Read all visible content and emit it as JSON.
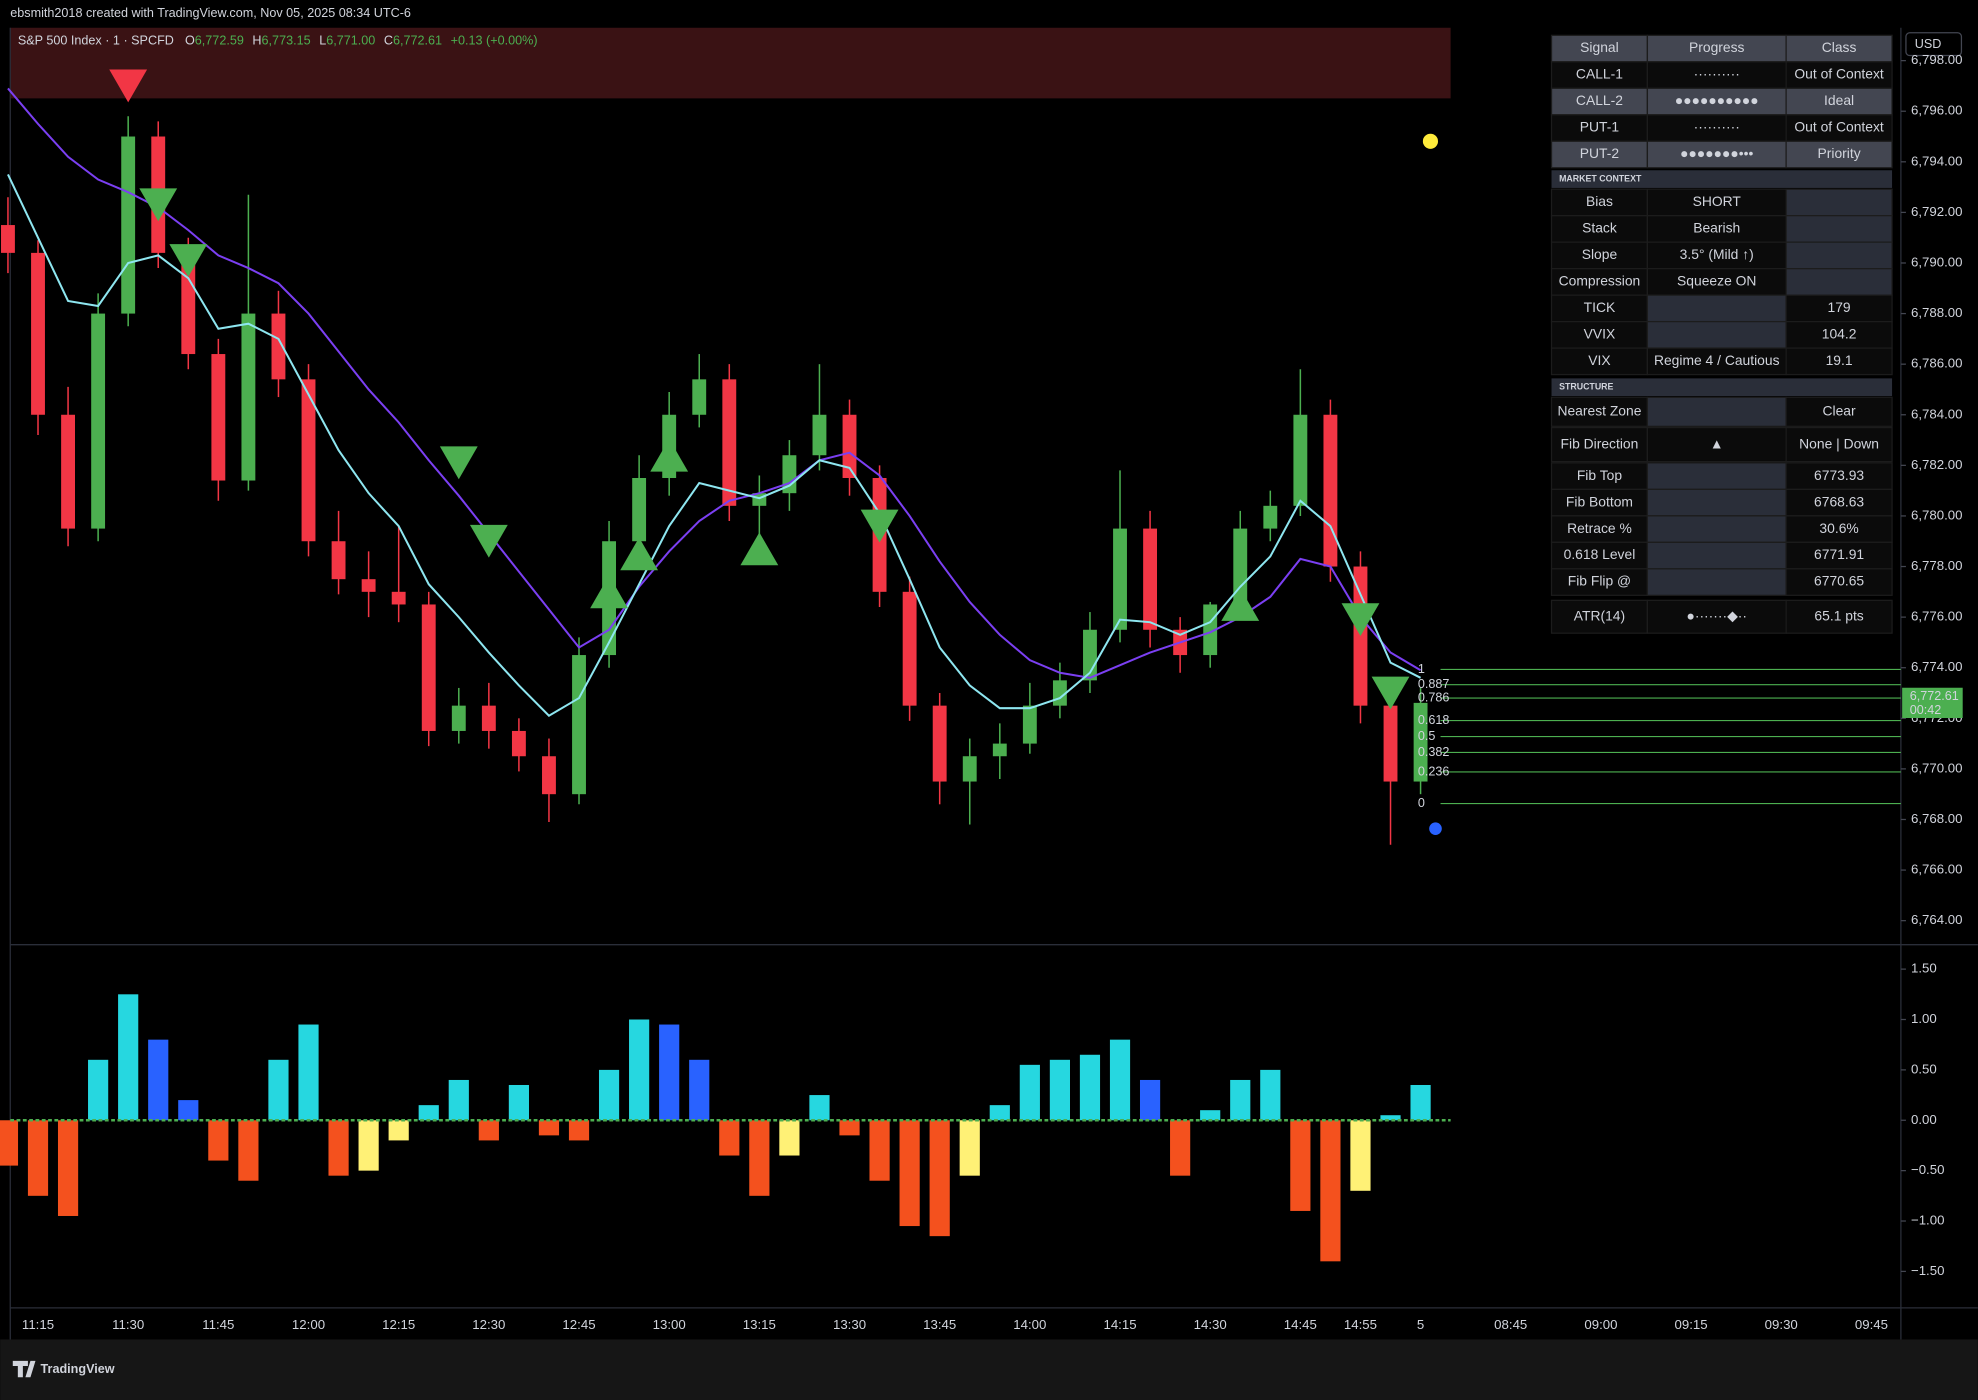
{
  "header": {
    "title": "ebsmith2018 created with TradingView.com, Nov 05, 2025 08:34 UTC-6",
    "brand": "TradingView",
    "currency": "USD"
  },
  "legend": {
    "symbol": "S&P 500 Index · 1 · SPCFD",
    "ohlc": [
      {
        "label": "O",
        "value": "6,772.59"
      },
      {
        "label": "H",
        "value": "6,773.15"
      },
      {
        "label": "L",
        "value": "6,771.00"
      },
      {
        "label": "C",
        "value": "6,772.61"
      }
    ],
    "change": "+0.13 (+0.00%)"
  },
  "chart_data": [
    {
      "type": "candlestick",
      "open": [
        6791.5,
        6790.4,
        6784.0,
        6779.5,
        6788.0,
        6795.0,
        6790.4,
        6786.4,
        6781.4,
        6788.0,
        6785.4,
        6779.0,
        6777.5,
        6777.0,
        6776.5,
        6771.5,
        6772.5,
        6771.5,
        6770.5,
        6769.0,
        6774.5,
        6779.0,
        6781.5,
        6784.0,
        6785.4,
        6780.4,
        6780.9,
        6782.4,
        6784.0,
        6781.5,
        6777.0,
        6772.5,
        6769.5,
        6770.5,
        6771.0,
        6772.5,
        6773.5,
        6775.5,
        6779.5,
        6775.5,
        6774.5,
        6776.5,
        6779.5,
        6780.4,
        6784.0,
        6778.0,
        6772.5,
        6769.5
      ],
      "high": [
        6792.6,
        6790.9,
        6785.1,
        6788.8,
        6795.8,
        6795.6,
        6791.0,
        6787.0,
        6792.7,
        6788.9,
        6786.0,
        6780.2,
        6778.6,
        6779.6,
        6777.0,
        6773.2,
        6773.4,
        6772.0,
        6771.2,
        6775.2,
        6779.8,
        6782.4,
        6784.9,
        6786.4,
        6786.0,
        6781.6,
        6783.0,
        6786.0,
        6784.6,
        6782.0,
        6777.6,
        6773.0,
        6771.2,
        6771.8,
        6773.4,
        6774.2,
        6776.2,
        6781.8,
        6780.2,
        6776.0,
        6776.6,
        6780.2,
        6781.0,
        6785.8,
        6784.6,
        6778.6,
        6773.0,
        6773.2
      ],
      "low": [
        6789.6,
        6783.2,
        6778.8,
        6779.0,
        6787.5,
        6789.8,
        6785.8,
        6780.6,
        6781.0,
        6784.7,
        6778.4,
        6776.9,
        6776.0,
        6775.8,
        6770.9,
        6771.0,
        6770.8,
        6769.9,
        6767.9,
        6768.6,
        6774.0,
        6778.5,
        6780.8,
        6783.5,
        6779.8,
        6779.0,
        6780.2,
        6781.8,
        6780.8,
        6776.4,
        6771.9,
        6768.6,
        6767.8,
        6769.6,
        6770.6,
        6772.0,
        6773.0,
        6775.0,
        6774.8,
        6773.8,
        6774.0,
        6776.0,
        6779.0,
        6780.0,
        6777.4,
        6771.8,
        6767.0,
        6769.0
      ],
      "close": [
        6790.4,
        6784.0,
        6779.5,
        6788.0,
        6795.0,
        6790.4,
        6786.4,
        6781.4,
        6788.0,
        6785.4,
        6779.0,
        6777.5,
        6777.0,
        6776.5,
        6771.5,
        6772.5,
        6771.5,
        6770.5,
        6769.0,
        6774.5,
        6779.0,
        6781.5,
        6784.0,
        6785.4,
        6780.4,
        6780.9,
        6782.4,
        6784.0,
        6781.5,
        6777.0,
        6772.5,
        6769.5,
        6770.5,
        6771.0,
        6772.5,
        6773.5,
        6775.5,
        6779.5,
        6775.5,
        6774.5,
        6776.5,
        6779.5,
        6780.4,
        6784.0,
        6778.0,
        6772.5,
        6769.5,
        6772.61
      ],
      "up_color": "#4caf50",
      "down_color": "#f23645",
      "lines": [
        {
          "color": "#7b3ff2",
          "values": [
            6796.9,
            6795.5,
            6794.2,
            6793.3,
            6792.8,
            6792.2,
            6791.3,
            6790.3,
            6789.8,
            6789.2,
            6788.0,
            6786.5,
            6785.0,
            6783.7,
            6782.2,
            6780.8,
            6779.3,
            6777.8,
            6776.3,
            6774.8,
            6775.5,
            6777.2,
            6778.6,
            6779.8,
            6780.6,
            6780.9,
            6781.3,
            6782.2,
            6782.5,
            6781.6,
            6780.0,
            6778.2,
            6776.6,
            6775.3,
            6774.3,
            6773.8,
            6773.6,
            6774.1,
            6774.6,
            6775.0,
            6775.4,
            6776.0,
            6776.8,
            6778.3,
            6778.0,
            6776.0,
            6774.6,
            6773.9
          ]
        },
        {
          "color": "#8ee6f0",
          "values": [
            6793.5,
            6791.0,
            6788.5,
            6788.3,
            6790.0,
            6790.3,
            6789.4,
            6787.4,
            6787.6,
            6787.0,
            6784.8,
            6782.6,
            6780.9,
            6779.6,
            6777.3,
            6776.0,
            6774.6,
            6773.3,
            6772.1,
            6772.8,
            6775.0,
            6777.3,
            6779.6,
            6781.3,
            6781.0,
            6780.7,
            6781.2,
            6782.2,
            6781.9,
            6780.1,
            6777.5,
            6774.8,
            6773.3,
            6772.4,
            6772.4,
            6772.8,
            6773.8,
            6775.9,
            6775.8,
            6775.3,
            6775.8,
            6777.2,
            6778.4,
            6780.6,
            6779.6,
            6776.9,
            6774.2,
            6773.6
          ]
        }
      ],
      "signals": [
        {
          "index": 4,
          "price": 6797.0,
          "direction": "down",
          "color": "#f23645"
        },
        {
          "index": 5,
          "price": 6792.3,
          "direction": "down",
          "color": "#4caf50"
        },
        {
          "index": 6,
          "price": 6790.1,
          "direction": "down",
          "color": "#4caf50"
        },
        {
          "index": 15,
          "price": 6782.1,
          "direction": "down",
          "color": "#4caf50"
        },
        {
          "index": 16,
          "price": 6779.0,
          "direction": "down",
          "color": "#4caf50"
        },
        {
          "index": 20,
          "price": 6777.0,
          "direction": "up",
          "color": "#4caf50"
        },
        {
          "index": 21,
          "price": 6778.5,
          "direction": "up",
          "color": "#4caf50"
        },
        {
          "index": 22,
          "price": 6782.4,
          "direction": "up",
          "color": "#4caf50"
        },
        {
          "index": 25,
          "price": 6778.7,
          "direction": "up",
          "color": "#4caf50"
        },
        {
          "index": 29,
          "price": 6779.6,
          "direction": "down",
          "color": "#4caf50"
        },
        {
          "index": 41,
          "price": 6776.5,
          "direction": "up",
          "color": "#4caf50"
        },
        {
          "index": 45,
          "price": 6775.9,
          "direction": "down",
          "color": "#4caf50"
        },
        {
          "index": 46,
          "price": 6773.0,
          "direction": "down",
          "color": "#4caf50"
        }
      ],
      "fib_levels": [
        {
          "level": 1,
          "price": 6773.93
        },
        {
          "level": 0.887,
          "price": 6773.33
        },
        {
          "level": 0.786,
          "price": 6772.8
        },
        {
          "level": 0.618,
          "price": 6771.91
        },
        {
          "level": 0.5,
          "price": 6771.28
        },
        {
          "level": 0.382,
          "price": 6770.65
        },
        {
          "level": 0.236,
          "price": 6769.88
        },
        {
          "level": 0,
          "price": 6768.63
        }
      ],
      "fib_color": "#4caf50",
      "last_price": {
        "value": 6772.61,
        "label": "6,772.61",
        "countdown": "00:42"
      },
      "ylim": [
        6763.1,
        6799.3
      ],
      "yticks": [
        {
          "value": 6798,
          "label": "6,798.00"
        },
        {
          "value": 6796,
          "label": "6,796.00"
        },
        {
          "value": 6794,
          "label": "6,794.00"
        },
        {
          "value": 6792,
          "label": "6,792.00"
        },
        {
          "value": 6790,
          "label": "6,790.00"
        },
        {
          "value": 6788,
          "label": "6,788.00"
        },
        {
          "value": 6786,
          "label": "6,786.00"
        },
        {
          "value": 6784,
          "label": "6,784.00"
        },
        {
          "value": 6782,
          "label": "6,782.00"
        },
        {
          "value": 6780,
          "label": "6,780.00"
        },
        {
          "value": 6778,
          "label": "6,778.00"
        },
        {
          "value": 6776,
          "label": "6,776.00"
        },
        {
          "value": 6774,
          "label": "6,774.00"
        },
        {
          "value": 6772,
          "label": "6,772.00"
        },
        {
          "value": 6770,
          "label": "6,770.00"
        },
        {
          "value": 6768,
          "label": "6,768.00"
        },
        {
          "value": 6766,
          "label": "6,766.00"
        },
        {
          "value": 6764,
          "label": "6,764.00"
        }
      ],
      "grid": false
    },
    {
      "type": "bar",
      "categories": [
        null,
        "11:15",
        null,
        null,
        "11:30",
        null,
        null,
        "11:45",
        null,
        null,
        "12:00",
        null,
        null,
        "12:15",
        null,
        null,
        "12:30",
        null,
        null,
        "12:45",
        null,
        null,
        "13:00",
        null,
        null,
        "13:15",
        null,
        null,
        "13:30",
        null,
        null,
        "13:45",
        null,
        null,
        "14:00",
        null,
        null,
        "14:15",
        null,
        null,
        "14:30",
        null,
        null,
        "14:45",
        null,
        "14:55",
        null,
        "5",
        null,
        null,
        "08:45",
        null,
        null,
        "09:00",
        null,
        null,
        "09:15",
        null,
        null,
        "09:30",
        null,
        null,
        "09:45"
      ],
      "values": [
        -0.45,
        -0.75,
        -0.95,
        0.6,
        1.25,
        0.8,
        0.2,
        -0.4,
        -0.6,
        0.6,
        0.95,
        -0.55,
        -0.5,
        -0.2,
        0.15,
        0.4,
        -0.2,
        0.35,
        -0.15,
        -0.2,
        0.5,
        1.0,
        0.95,
        0.6,
        -0.35,
        -0.75,
        -0.35,
        0.25,
        -0.15,
        -0.6,
        -1.05,
        -1.15,
        -0.55,
        0.15,
        0.55,
        0.6,
        0.65,
        0.8,
        0.4,
        -0.55,
        0.1,
        0.4,
        0.5,
        -0.9,
        -1.4,
        -0.7,
        0.05,
        0.35,
        null,
        null,
        null,
        null,
        null,
        null,
        null,
        null,
        null,
        null,
        null,
        null,
        null,
        null,
        null
      ],
      "colors": {
        "positive_rising": "#26d7e0",
        "positive_falling": "#2962ff",
        "negative_falling": "#f4511e",
        "negative_rising": "#fff176"
      },
      "zero_color": "#4caf50",
      "ylim": [
        -1.85,
        1.73
      ],
      "yticks": [
        {
          "value": 1.5,
          "label": "1.50"
        },
        {
          "value": 1,
          "label": "1.00"
        },
        {
          "value": 0.5,
          "label": "0.50"
        },
        {
          "value": 0,
          "label": "0.00"
        },
        {
          "value": -0.5,
          "label": "−0.50"
        },
        {
          "value": -1,
          "label": "−1.00"
        },
        {
          "value": -1.5,
          "label": "−1.50"
        }
      ],
      "grid": false
    }
  ],
  "table": {
    "columns": [
      "Signal",
      "Progress",
      "Class"
    ],
    "rows": [
      [
        "CALL-1",
        "··········",
        "Out of Context"
      ],
      [
        "CALL-2",
        "●●●●●●●●●●",
        "Ideal"
      ],
      [
        "PUT-1",
        "··········",
        "Out of Context"
      ],
      [
        "PUT-2",
        "●●●●●●●•••",
        "Priority"
      ],
      [
        "MARKET CONTEXT"
      ],
      [
        "Bias",
        "SHORT",
        null
      ],
      [
        "Stack",
        "Bearish",
        null
      ],
      [
        "Slope",
        "3.5° (Mild ↑)",
        null
      ],
      [
        "Compression",
        "Squeeze ON",
        null
      ],
      [
        "TICK",
        null,
        "179"
      ],
      [
        "VVIX",
        null,
        "104.2"
      ],
      [
        "VIX",
        "Regime 4 / Cautious",
        "19.1"
      ],
      [
        "STRUCTURE"
      ],
      [
        "Nearest Zone",
        null,
        "Clear"
      ],
      [
        "Fib Direction",
        "▲",
        "None | Down"
      ],
      [
        "Fib Top",
        null,
        "6773.93"
      ],
      [
        "Fib Bottom",
        null,
        "6768.63"
      ],
      [
        "Retrace %",
        null,
        "30.6%"
      ],
      [
        "0.618 Level",
        null,
        "6771.91"
      ],
      [
        "Fib Flip @",
        null,
        "6770.65"
      ],
      [
        "ATR(14)",
        "●·······◆··",
        "65.1 pts"
      ]
    ]
  }
}
